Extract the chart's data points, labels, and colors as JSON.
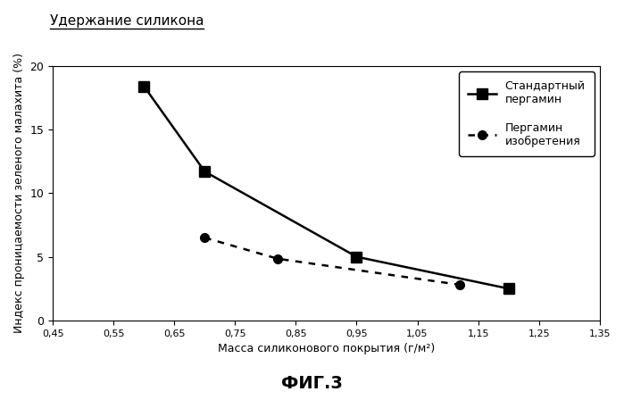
{
  "title": "Удержание силикона",
  "xlabel": "Масса силиконового покрытия (г/м²)",
  "ylabel": "Индекс проницаемости зеленого малахита (%)",
  "fig_label": "ФИГ.3",
  "xlim": [
    0.45,
    1.35
  ],
  "ylim": [
    0,
    20
  ],
  "xticks": [
    0.45,
    0.55,
    0.65,
    0.75,
    0.85,
    0.95,
    1.05,
    1.15,
    1.25,
    1.35
  ],
  "xtick_labels": [
    "0,45",
    "0,55",
    "0,65",
    "0,75",
    "0,85",
    "0,95",
    "1,05",
    "1,15",
    "1,25",
    "1,35"
  ],
  "yticks": [
    0,
    5,
    10,
    15,
    20
  ],
  "series1_x": [
    0.6,
    0.7,
    0.95,
    1.2
  ],
  "series1_y": [
    18.4,
    11.7,
    5.0,
    2.5
  ],
  "series1_label": "Стандартный\nпергамин",
  "series2_x": [
    0.7,
    0.82,
    1.12
  ],
  "series2_y": [
    6.5,
    4.85,
    2.8
  ],
  "series2_label": "Пергамин\nизобретения",
  "line_color": "#000000",
  "marker1": "s",
  "marker2": "o",
  "markersize1": 8,
  "markersize2": 7,
  "linewidth": 1.8,
  "background_color": "#ffffff"
}
